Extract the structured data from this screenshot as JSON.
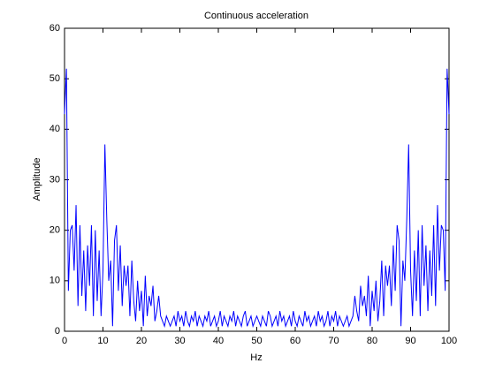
{
  "chart_data": {
    "type": "line",
    "title": "Continuous acceleration",
    "x_label": "Hz",
    "y_label": "Amplitude",
    "color": "#0000ff",
    "x": [
      0,
      0.5,
      1,
      1.5,
      2,
      2.5,
      3,
      3.5,
      4,
      4.5,
      5,
      5.5,
      6,
      6.5,
      7,
      7.5,
      8,
      8.5,
      9,
      9.5,
      10,
      10.5,
      11,
      11.5,
      12,
      12.5,
      13,
      13.5,
      14,
      14.5,
      15,
      15.5,
      16,
      16.5,
      17,
      17.5,
      18,
      18.5,
      19,
      19.5,
      20,
      20.5,
      21,
      21.5,
      22,
      22.5,
      23,
      23.5,
      24,
      24.5,
      25,
      25.5,
      26,
      26.5,
      27,
      27.5,
      28,
      28.5,
      29,
      29.5,
      30,
      30.5,
      31,
      31.5,
      32,
      32.5,
      33,
      33.5,
      34,
      34.5,
      35,
      35.5,
      36,
      36.5,
      37,
      37.5,
      38,
      38.5,
      39,
      39.5,
      40,
      40.5,
      41,
      41.5,
      42,
      42.5,
      43,
      43.5,
      44,
      44.5,
      45,
      45.5,
      46,
      46.5,
      47,
      47.5,
      48,
      48.5,
      49,
      49.5,
      50,
      50.5,
      51,
      51.5,
      52,
      52.5,
      53,
      53.5,
      54,
      54.5,
      55,
      55.5,
      56,
      56.5,
      57,
      57.5,
      58,
      58.5,
      59,
      59.5,
      60,
      60.5,
      61,
      61.5,
      62,
      62.5,
      63,
      63.5,
      64,
      64.5,
      65,
      65.5,
      66,
      66.5,
      67,
      67.5,
      68,
      68.5,
      69,
      69.5,
      70,
      70.5,
      71,
      71.5,
      72,
      72.5,
      73,
      73.5,
      74,
      74.5,
      75,
      75.5,
      76,
      76.5,
      77,
      77.5,
      78,
      78.5,
      79,
      79.5,
      80,
      80.5,
      81,
      81.5,
      82,
      82.5,
      83,
      83.5,
      84,
      84.5,
      85,
      85.5,
      86,
      86.5,
      87,
      87.5,
      88,
      88.5,
      89,
      89.5,
      90,
      90.5,
      91,
      91.5,
      92,
      92.5,
      93,
      93.5,
      94,
      94.5,
      95,
      95.5,
      96,
      96.5,
      97,
      97.5,
      98,
      98.5,
      99,
      99.5,
      100
    ],
    "values": [
      43,
      52,
      8,
      20,
      21,
      12,
      25,
      5,
      21,
      7,
      16,
      4,
      17,
      9,
      21,
      3,
      20,
      6,
      16,
      3,
      12,
      37,
      22,
      10,
      14,
      1,
      18,
      21,
      8,
      17,
      5,
      13,
      9,
      13,
      3,
      14,
      6,
      2,
      10,
      4,
      8,
      1,
      11,
      3,
      7,
      5,
      9,
      2,
      4,
      7,
      3,
      2,
      1,
      3,
      2,
      1,
      2,
      3,
      1,
      4,
      2,
      3,
      1,
      4,
      2,
      1,
      3,
      2,
      4,
      1,
      3,
      2,
      1,
      3,
      2,
      4,
      1,
      2,
      3,
      1,
      2,
      4,
      1,
      3,
      2,
      1,
      3,
      2,
      4,
      1,
      3,
      2,
      1,
      3,
      4,
      1,
      2,
      3,
      1,
      2,
      3,
      2,
      1,
      3,
      2,
      1,
      4,
      3,
      1,
      2,
      3,
      1,
      4,
      2,
      3,
      1,
      2,
      3,
      1,
      4,
      2,
      1,
      3,
      2,
      1,
      4,
      2,
      3,
      1,
      2,
      3,
      1,
      4,
      2,
      3,
      1,
      2,
      4,
      1,
      3,
      2,
      4,
      1,
      3,
      2,
      1,
      2,
      3,
      1,
      2,
      3,
      7,
      4,
      2,
      9,
      5,
      7,
      3,
      11,
      1,
      8,
      4,
      10,
      2,
      6,
      14,
      3,
      13,
      9,
      13,
      5,
      17,
      8,
      21,
      18,
      1,
      14,
      10,
      22,
      37,
      12,
      3,
      16,
      6,
      20,
      3,
      21,
      9,
      17,
      4,
      16,
      7,
      21,
      5,
      25,
      12,
      21,
      20,
      8,
      52,
      43
    ],
    "xlim": [
      0,
      100
    ],
    "xticks": [
      0,
      10,
      20,
      30,
      40,
      50,
      60,
      70,
      80,
      90,
      100
    ],
    "ylim": [
      0,
      60
    ],
    "yticks": [
      0,
      10,
      20,
      30,
      40,
      50,
      60
    ]
  }
}
